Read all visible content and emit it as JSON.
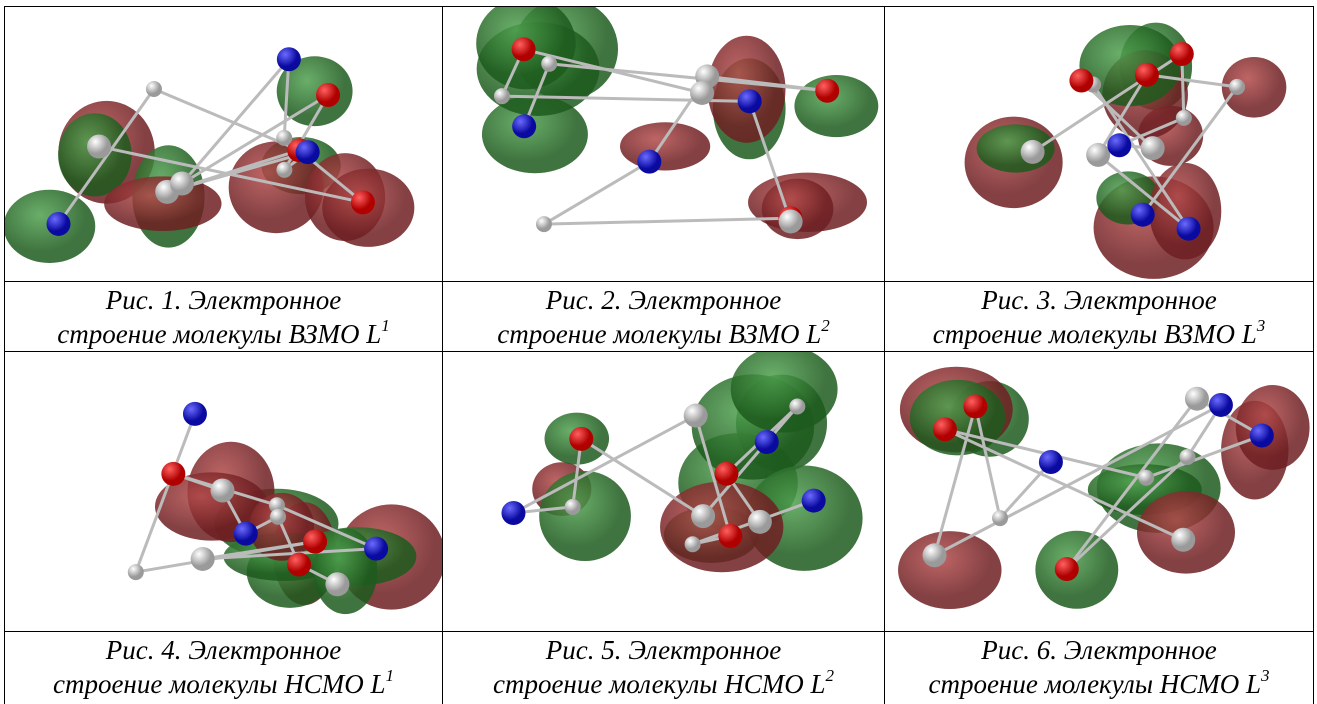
{
  "figures": [
    {
      "line1": "Рис. 1. Электронное",
      "line2": "строение молекулы ВЗМО L",
      "sup": "1"
    },
    {
      "line1": "Рис. 2. Электронное",
      "line2": "строение молекулы ВЗМО L",
      "sup": "2"
    },
    {
      "line1": "Рис. 3. Электронное",
      "line2": "строение молекулы ВЗМО L",
      "sup": "3"
    },
    {
      "line1": "Рис. 4. Электронное",
      "line2": "строение молекулы НСМО L",
      "sup": "1"
    },
    {
      "line1": "Рис. 5. Электронное",
      "line2": "строение молекулы НСМО L",
      "sup": "2"
    },
    {
      "line1": "Рис. 6. Электронное",
      "line2": "строение молекулы НСМО L",
      "sup": "3"
    }
  ]
}
